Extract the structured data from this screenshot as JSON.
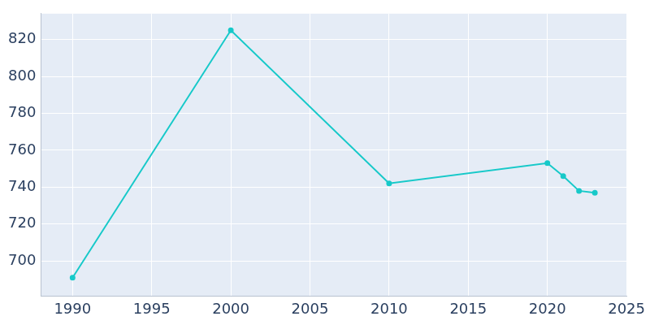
{
  "chart_data": {
    "type": "line",
    "x": [
      1990,
      2000,
      2010,
      2020,
      2021,
      2022,
      2023
    ],
    "values": [
      691,
      825,
      742,
      753,
      746,
      738,
      737
    ],
    "color": "#17c9c9",
    "xlim": [
      1988,
      2025
    ],
    "xticks": [
      1990,
      1995,
      2000,
      2005,
      2010,
      2015,
      2020,
      2025
    ],
    "ylim": [
      681,
      834
    ],
    "yticks": [
      700,
      720,
      740,
      760,
      780,
      800,
      820
    ],
    "grid": true,
    "marker": "circle"
  }
}
